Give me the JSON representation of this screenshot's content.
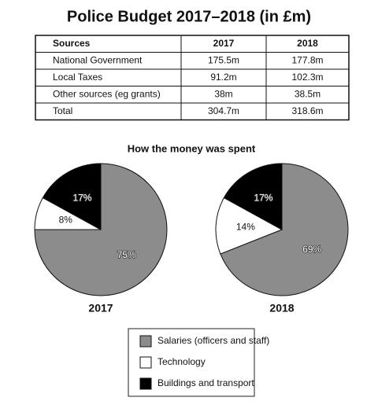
{
  "title": "Police Budget 2017–2018 (in £m)",
  "table": {
    "header": [
      "Sources",
      "2017",
      "2018"
    ],
    "rows": [
      [
        "National Government",
        "175.5m",
        "177.8m"
      ],
      [
        "Local Taxes",
        "91.2m",
        "102.3m"
      ],
      [
        "Other sources (eg grants)",
        "38m",
        "38.5m"
      ],
      [
        "Total",
        "304.7m",
        "318.6m"
      ]
    ]
  },
  "charts_title": "How the money was spent",
  "chart_data": [
    {
      "type": "pie",
      "title": "2017",
      "categories": [
        "Salaries (officers and staff)",
        "Technology",
        "Buildings and transport"
      ],
      "values": [
        75,
        8,
        17
      ],
      "value_labels": [
        "75%",
        "8%",
        "17%"
      ],
      "colors": [
        "#8c8c8c",
        "#ffffff",
        "#000000"
      ]
    },
    {
      "type": "pie",
      "title": "2018",
      "values": [
        69,
        14,
        17
      ],
      "value_labels": [
        "69%",
        "14%",
        "17%"
      ],
      "colors": [
        "#8c8c8c",
        "#ffffff",
        "#000000"
      ]
    }
  ]
}
